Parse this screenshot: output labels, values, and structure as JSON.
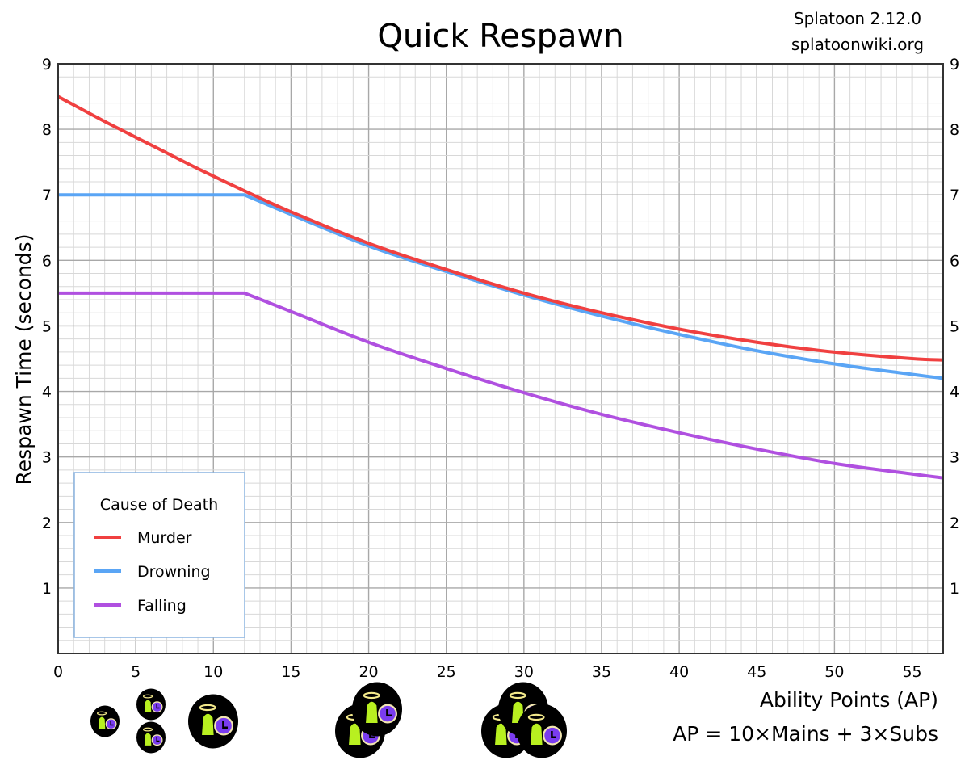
{
  "chart_data": {
    "type": "line",
    "title": "Quick Respawn",
    "source_lines": [
      "Splatoon 2.12.0",
      "splatoonwiki.org"
    ],
    "xlabel": "Ability Points (AP)",
    "xlabel_note": "AP = 10×Mains + 3×Subs",
    "ylabel": "Respawn Time (seconds)",
    "xlim": [
      0,
      57
    ],
    "ylim": [
      0,
      9
    ],
    "xticks": [
      0,
      5,
      10,
      15,
      20,
      25,
      30,
      35,
      40,
      45,
      50,
      55
    ],
    "yticks": [
      1,
      2,
      3,
      4,
      5,
      6,
      7,
      8,
      9
    ],
    "grid": true,
    "legend": {
      "title": "Cause of Death",
      "placement": "bottom-left"
    },
    "x": [
      0,
      3,
      6,
      9,
      12,
      15,
      20,
      25,
      30,
      35,
      40,
      45,
      50,
      55,
      57
    ],
    "series": [
      {
        "name": "Murder",
        "color": "#f04040",
        "values": [
          8.5,
          8.12,
          7.76,
          7.4,
          7.06,
          6.74,
          6.26,
          5.86,
          5.5,
          5.2,
          4.95,
          4.75,
          4.6,
          4.5,
          4.48
        ]
      },
      {
        "name": "Drowning",
        "color": "#5aa5f5",
        "values": [
          7,
          7,
          7,
          7,
          7,
          6.7,
          6.22,
          5.83,
          5.47,
          5.15,
          4.87,
          4.62,
          4.42,
          4.26,
          4.2
        ]
      },
      {
        "name": "Falling",
        "color": "#b050e0",
        "values": [
          5.5,
          5.5,
          5.5,
          5.5,
          5.5,
          5.22,
          4.75,
          4.35,
          3.98,
          3.65,
          3.37,
          3.12,
          2.9,
          2.74,
          2.68
        ]
      }
    ],
    "ability_icon_groups": [
      {
        "label": "Quick Respawn sub icons",
        "ap": 3,
        "icon": "quick-respawn-icon"
      },
      {
        "ap": 6,
        "icon": "quick-respawn-icon"
      },
      {
        "ap": 10,
        "icon": "quick-respawn-icon"
      },
      {
        "ap": 20,
        "icon": "quick-respawn-icon"
      },
      {
        "ap": 30,
        "icon": "quick-respawn-icon"
      }
    ]
  }
}
